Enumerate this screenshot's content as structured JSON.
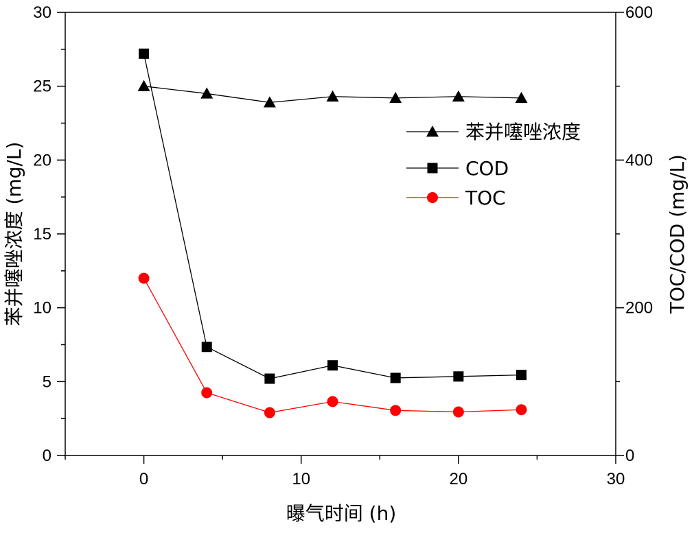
{
  "chart_data": {
    "type": "line",
    "xlabel": "曝气时间 (h)",
    "ylabel_left": "苯并噻唑浓度 (mg/L)",
    "ylabel_right": "TOC/COD (mg/L)",
    "xlim": [
      -5,
      30
    ],
    "ylim_left": [
      0,
      30
    ],
    "ylim_right": [
      0,
      600
    ],
    "x_ticks": [
      0,
      10,
      20,
      30
    ],
    "y_left_ticks": [
      0,
      5,
      10,
      15,
      20,
      25,
      30
    ],
    "y_right_ticks": [
      0,
      200,
      400,
      600
    ],
    "grid": false,
    "legend_position": "right",
    "series": [
      {
        "name": "苯并噻唑浓度",
        "axis": "left",
        "marker": "triangle",
        "color": "#000000",
        "x": [
          0,
          4,
          8,
          12,
          16,
          20,
          24
        ],
        "y": [
          25.0,
          24.5,
          23.9,
          24.3,
          24.2,
          24.3,
          24.2
        ]
      },
      {
        "name": "COD",
        "axis": "right",
        "marker": "square",
        "color": "#000000",
        "x": [
          0,
          4,
          8,
          12,
          16,
          20,
          24
        ],
        "y": [
          544,
          147,
          104,
          122,
          105,
          107,
          109
        ]
      },
      {
        "name": "TOC",
        "axis": "right",
        "marker": "circle",
        "color": "#ff0000",
        "x": [
          0,
          4,
          8,
          12,
          16,
          20,
          24
        ],
        "y": [
          240,
          85,
          58,
          73,
          61,
          59,
          62
        ]
      }
    ]
  }
}
